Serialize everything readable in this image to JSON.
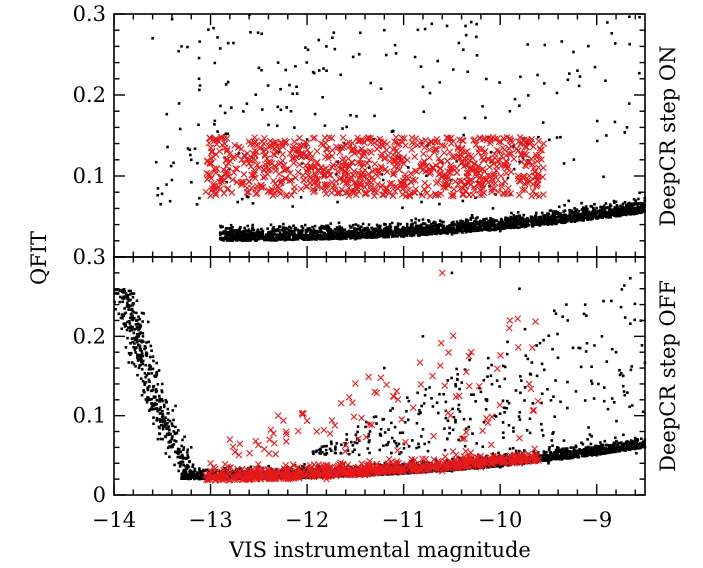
{
  "chart_data": {
    "type": "scatter",
    "xlabel": "VIS instrumental magnitude",
    "ylabel": "QFIT",
    "xlim": [
      -14,
      -8.5
    ],
    "x_ticks": [
      -14,
      -13,
      -12,
      -11,
      -10,
      -9
    ],
    "x_tick_labels": [
      "−14",
      "−13",
      "−12",
      "−11",
      "−10",
      "−9"
    ],
    "series_colors": {
      "all_sources": "#000000",
      "injected": "#e41a1c"
    },
    "panels": [
      {
        "side_label": "DeepCR step ON",
        "ylim": [
          0,
          0.3
        ],
        "y_ticks": [
          0.1,
          0.2,
          0.3
        ],
        "y_tick_labels": [
          "0.1",
          "0.2",
          "0.3"
        ],
        "top_tick_label": "0.3",
        "description_of_series": [
          {
            "marker": "dot",
            "color": "#000000",
            "sample": [
              [
                -13.6,
                0.27
              ],
              [
                -13.3,
                0.26
              ],
              [
                -13.2,
                0.12
              ],
              [
                -13.4,
                0.095
              ],
              [
                -12.9,
                0.03
              ],
              [
                -12.5,
                0.025
              ],
              [
                -12,
                0.022
              ],
              [
                -11.5,
                0.022
              ],
              [
                -11,
                0.025
              ],
              [
                -10.5,
                0.028
              ],
              [
                -10,
                0.032
              ],
              [
                -9.5,
                0.04
              ],
              [
                -9,
                0.048
              ],
              [
                -8.6,
                0.055
              ],
              [
                -12.3,
                0.24
              ],
              [
                -11.8,
                0.26
              ],
              [
                -10.8,
                0.21
              ],
              [
                -9.9,
                0.18
              ],
              [
                -9.2,
                0.23
              ],
              [
                -8.9,
                0.15
              ],
              [
                -10.3,
                0.29
              ],
              [
                -11.2,
                0.28
              ]
            ]
          },
          {
            "marker": "x",
            "color": "#e41a1c",
            "sample": [
              [
                -13,
                0.1
              ],
              [
                -12.8,
                0.13
              ],
              [
                -12.5,
                0.08
              ],
              [
                -12.2,
                0.14
              ],
              [
                -12,
                0.11
              ],
              [
                -11.7,
                0.09
              ],
              [
                -11.4,
                0.13
              ],
              [
                -11,
                0.1
              ],
              [
                -10.7,
                0.12
              ],
              [
                -10.4,
                0.08
              ],
              [
                -10.1,
                0.14
              ],
              [
                -9.8,
                0.11
              ],
              [
                -9.6,
                0.1
              ]
            ]
          }
        ]
      },
      {
        "side_label": "DeepCR step OFF",
        "ylim": [
          0,
          0.3
        ],
        "y_ticks": [
          0,
          0.1,
          0.2,
          0.3
        ],
        "y_tick_labels": [
          "0",
          "0.1",
          "0.2",
          "0.3"
        ],
        "description_of_series": [
          {
            "marker": "dot",
            "color": "#000000",
            "sample": [
              [
                -13.9,
                0.25
              ],
              [
                -13.7,
                0.2
              ],
              [
                -13.5,
                0.14
              ],
              [
                -13.4,
                0.09
              ],
              [
                -13.2,
                0.06
              ],
              [
                -12.8,
                0.035
              ],
              [
                -12.2,
                0.025
              ],
              [
                -11.5,
                0.025
              ],
              [
                -11,
                0.028
              ],
              [
                -10.5,
                0.03
              ],
              [
                -10,
                0.035
              ],
              [
                -9.5,
                0.04
              ],
              [
                -9,
                0.05
              ],
              [
                -8.6,
                0.06
              ],
              [
                -10.8,
                0.2
              ],
              [
                -10.5,
                0.28
              ],
              [
                -9.8,
                0.26
              ],
              [
                -9.3,
                0.22
              ],
              [
                -8.8,
                0.18
              ],
              [
                -11.2,
                0.16
              ],
              [
                -10.2,
                0.13
              ]
            ]
          },
          {
            "marker": "x",
            "color": "#e41a1c",
            "sample": [
              [
                -13,
                0.04
              ],
              [
                -12.6,
                0.03
              ],
              [
                -12.2,
                0.02
              ],
              [
                -11.8,
                0.02
              ],
              [
                -11.4,
                0.025
              ],
              [
                -11,
                0.03
              ],
              [
                -10.6,
                0.03
              ],
              [
                -10.2,
                0.035
              ],
              [
                -9.8,
                0.04
              ],
              [
                -12.8,
                0.07
              ],
              [
                -12.3,
                0.1
              ],
              [
                -11.9,
                0.08
              ],
              [
                -11.3,
                0.13
              ],
              [
                -10.7,
                0.15
              ],
              [
                -10.3,
                0.18
              ],
              [
                -10.6,
                0.28
              ],
              [
                -9.9,
                0.22
              ],
              [
                -9.7,
                0.14
              ],
              [
                -10.9,
                0.11
              ]
            ]
          }
        ]
      }
    ]
  }
}
